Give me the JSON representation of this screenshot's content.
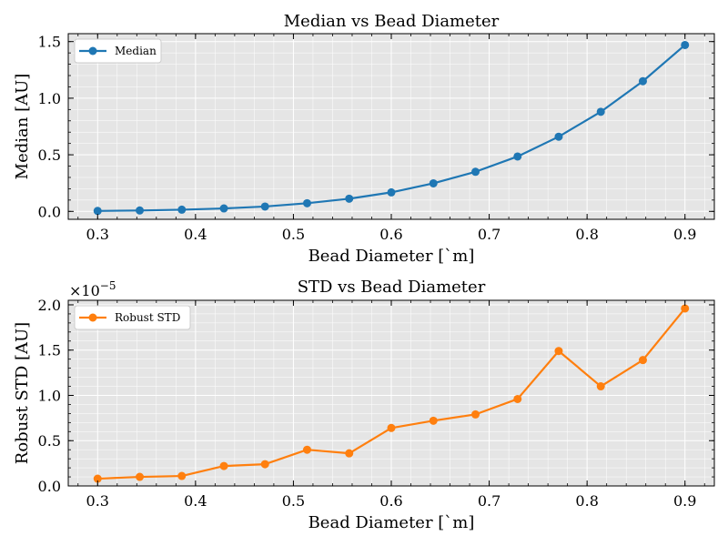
{
  "chart_data": [
    {
      "type": "line",
      "title": "Median vs Bead Diameter",
      "xlabel": "Bead Diameter [`m]",
      "ylabel": "Median [AU]",
      "xlim": [
        0.27,
        0.93
      ],
      "ylim": [
        -0.07,
        1.57
      ],
      "xticks": [
        0.3,
        0.4,
        0.5,
        0.6,
        0.7,
        0.8,
        0.9
      ],
      "xtick_labels": [
        "0.3",
        "0.4",
        "0.5",
        "0.6",
        "0.7",
        "0.8",
        "0.9"
      ],
      "yticks": [
        0.0,
        0.5,
        1.0,
        1.5
      ],
      "ytick_labels": [
        "0.0",
        "0.5",
        "1.0",
        "1.5"
      ],
      "grid": true,
      "legend_position": "top-left",
      "series": [
        {
          "name": "Median",
          "color": "#1f77b4",
          "x": [
            0.3,
            0.343,
            0.386,
            0.429,
            0.471,
            0.514,
            0.557,
            0.6,
            0.643,
            0.686,
            0.729,
            0.771,
            0.814,
            0.857,
            0.9
          ],
          "values": [
            0.004,
            0.008,
            0.015,
            0.026,
            0.043,
            0.072,
            0.112,
            0.168,
            0.248,
            0.35,
            0.485,
            0.66,
            0.88,
            1.15,
            1.47
          ]
        }
      ]
    },
    {
      "type": "line",
      "title": "STD vs Bead Diameter",
      "xlabel": "Bead Diameter [`m]",
      "ylabel": "Robust STD [AU]",
      "y_offset_label": "×10",
      "y_offset_exponent": "−5",
      "xlim": [
        0.27,
        0.93
      ],
      "ylim": [
        0.0,
        2.05
      ],
      "xticks": [
        0.3,
        0.4,
        0.5,
        0.6,
        0.7,
        0.8,
        0.9
      ],
      "xtick_labels": [
        "0.3",
        "0.4",
        "0.5",
        "0.6",
        "0.7",
        "0.8",
        "0.9"
      ],
      "yticks": [
        0.0,
        0.5,
        1.0,
        1.5,
        2.0
      ],
      "ytick_labels": [
        "0.0",
        "0.5",
        "1.0",
        "1.5",
        "2.0"
      ],
      "grid": true,
      "legend_position": "top-left",
      "series": [
        {
          "name": "Robust STD",
          "color": "#ff7f0e",
          "x": [
            0.3,
            0.343,
            0.386,
            0.429,
            0.471,
            0.514,
            0.557,
            0.6,
            0.643,
            0.686,
            0.729,
            0.771,
            0.814,
            0.857,
            0.9
          ],
          "values": [
            0.08,
            0.1,
            0.11,
            0.22,
            0.24,
            0.4,
            0.36,
            0.64,
            0.72,
            0.79,
            0.96,
            1.49,
            1.1,
            1.39,
            1.96
          ]
        }
      ]
    }
  ]
}
